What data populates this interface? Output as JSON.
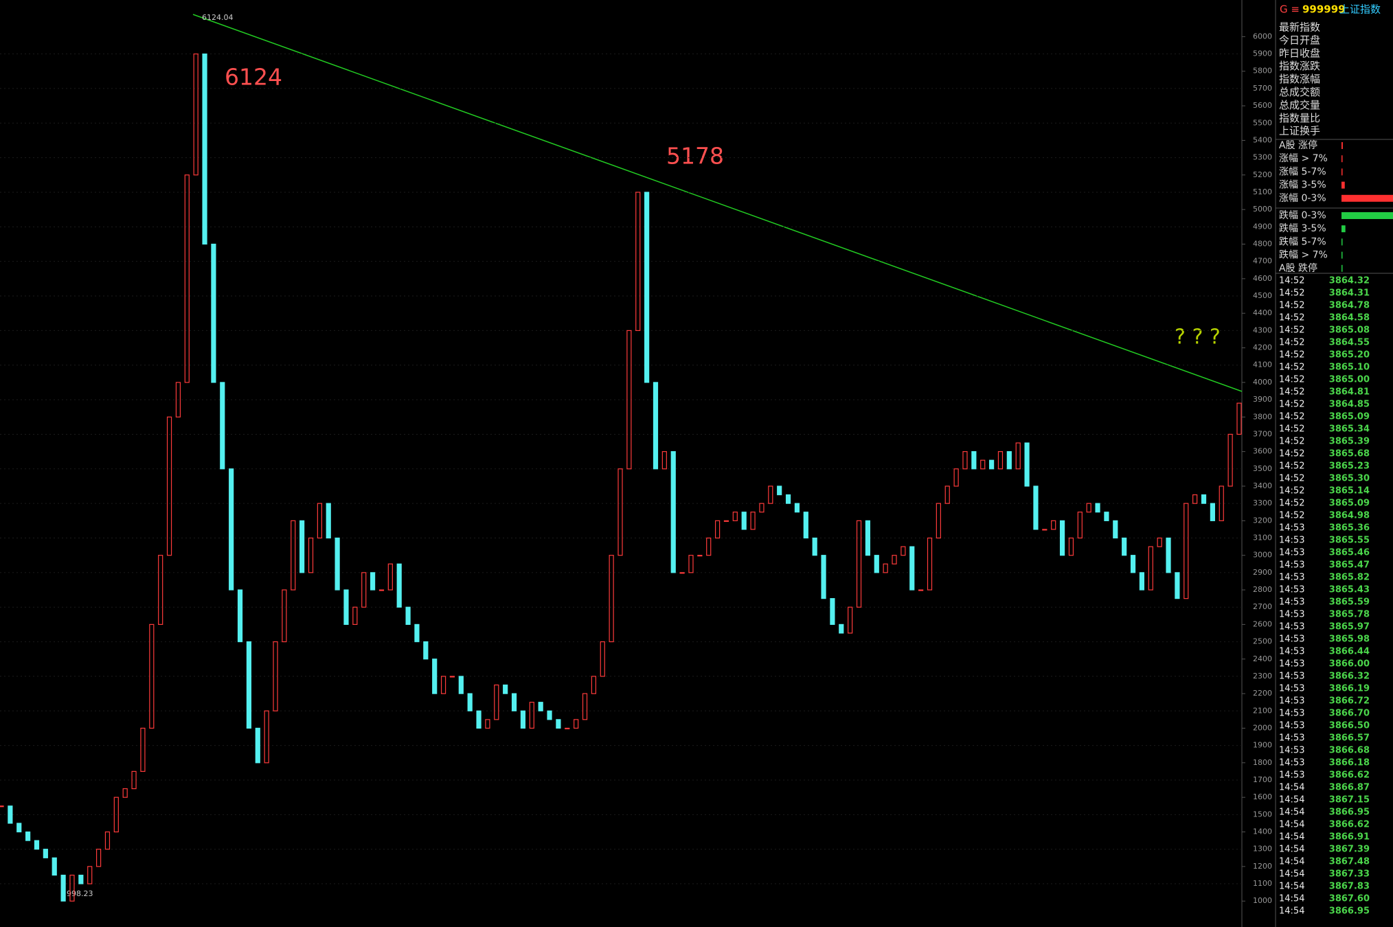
{
  "chart_data": {
    "type": "candle",
    "values": [
      1550,
      1450,
      1400,
      1350,
      1300,
      1250,
      1150,
      1000,
      1150,
      1100,
      1200,
      1300,
      1400,
      1600,
      1650,
      1750,
      2000,
      2600,
      3000,
      3800,
      4000,
      5200,
      5900,
      4800,
      4000,
      3500,
      2800,
      2500,
      2000,
      1800,
      2100,
      2500,
      2800,
      3200,
      2900,
      3100,
      3300,
      3100,
      2800,
      2600,
      2700,
      2900,
      2800,
      2800,
      2950,
      2700,
      2600,
      2500,
      2400,
      2200,
      2300,
      2300,
      2200,
      2100,
      2000,
      2050,
      2250,
      2200,
      2100,
      2000,
      2150,
      2100,
      2050,
      2000,
      2000,
      2050,
      2200,
      2300,
      2500,
      3000,
      3500,
      4300,
      5100,
      4000,
      3500,
      3600,
      2900,
      2900,
      3000,
      3000,
      3100,
      3200,
      3200,
      3250,
      3150,
      3250,
      3300,
      3400,
      3350,
      3300,
      3250,
      3100,
      3000,
      2750,
      2600,
      2550,
      2700,
      3200,
      3000,
      2900,
      2950,
      3000,
      3050,
      2800,
      2800,
      3100,
      3300,
      3400,
      3500,
      3600,
      3500,
      3550,
      3500,
      3600,
      3500,
      3650,
      3400,
      3150,
      3150,
      3200,
      3000,
      3100,
      3250,
      3300,
      3250,
      3200,
      3100,
      3000,
      2900,
      2800,
      3050,
      3100,
      2900,
      2750,
      3300,
      3350,
      3300,
      3200,
      3400,
      3700,
      3880
    ],
    "up_color": "#ff3b3b",
    "down_color": "#54f0f0",
    "ylim": [
      850,
      6212
    ],
    "yticks": [
      1000,
      1100,
      1200,
      1300,
      1400,
      1500,
      1600,
      1700,
      1800,
      1900,
      2000,
      2100,
      2200,
      2300,
      2400,
      2500,
      2600,
      2700,
      2800,
      2900,
      3000,
      3100,
      3200,
      3300,
      3400,
      3500,
      3600,
      3700,
      3800,
      3900,
      4000,
      4100,
      4200,
      4300,
      4400,
      4500,
      4600,
      4700,
      4800,
      4900,
      5000,
      5100,
      5200,
      5300,
      5400,
      5500,
      5600,
      5700,
      5800,
      5900,
      6000
    ],
    "grid": true,
    "annotations": {
      "peak_label": "6124.04",
      "low_label": "998.23",
      "peak1": "6124",
      "peak2": "5178",
      "question": "? ? ?"
    }
  },
  "panel": {
    "header": {
      "code": "999999",
      "name": "上证指数",
      "prefix": "G ≡"
    },
    "fields": [
      "最新指数",
      "今日开盘",
      "昨日收盘",
      "指数涨跌",
      "指数涨幅",
      "总成交额",
      "总成交量",
      "指数量比",
      "上证换手"
    ],
    "breadth": [
      {
        "label": "A股 涨停",
        "value": 20,
        "dir": "up"
      },
      {
        "label": "涨幅 > 7%",
        "value": 15,
        "dir": "up"
      },
      {
        "label": "涨幅 5-7%",
        "value": 15,
        "dir": "up"
      },
      {
        "label": "涨幅 3-5%",
        "value": 50,
        "dir": "up"
      },
      {
        "label": "涨幅 0-3%",
        "value": 800,
        "dir": "up"
      },
      {
        "label": "跌幅 0-3%",
        "value": 800,
        "dir": "down"
      },
      {
        "label": "跌幅 3-5%",
        "value": 60,
        "dir": "down"
      },
      {
        "label": "跌幅 5-7%",
        "value": 15,
        "dir": "down"
      },
      {
        "label": "跌幅 > 7%",
        "value": 5,
        "dir": "down"
      },
      {
        "label": "A股 跌停",
        "value": 5,
        "dir": "down"
      }
    ],
    "ticks": [
      [
        "14:52",
        "3864.32"
      ],
      [
        "14:52",
        "3864.31"
      ],
      [
        "14:52",
        "3864.78"
      ],
      [
        "14:52",
        "3864.58"
      ],
      [
        "14:52",
        "3865.08"
      ],
      [
        "14:52",
        "3864.55"
      ],
      [
        "14:52",
        "3865.20"
      ],
      [
        "14:52",
        "3865.10"
      ],
      [
        "14:52",
        "3865.00"
      ],
      [
        "14:52",
        "3864.81"
      ],
      [
        "14:52",
        "3864.85"
      ],
      [
        "14:52",
        "3865.09"
      ],
      [
        "14:52",
        "3865.34"
      ],
      [
        "14:52",
        "3865.39"
      ],
      [
        "14:52",
        "3865.68"
      ],
      [
        "14:52",
        "3865.23"
      ],
      [
        "14:52",
        "3865.30"
      ],
      [
        "14:52",
        "3865.14"
      ],
      [
        "14:52",
        "3865.09"
      ],
      [
        "14:52",
        "3864.98"
      ],
      [
        "14:53",
        "3865.36"
      ],
      [
        "14:53",
        "3865.55"
      ],
      [
        "14:53",
        "3865.46"
      ],
      [
        "14:53",
        "3865.47"
      ],
      [
        "14:53",
        "3865.82"
      ],
      [
        "14:53",
        "3865.43"
      ],
      [
        "14:53",
        "3865.59"
      ],
      [
        "14:53",
        "3865.78"
      ],
      [
        "14:53",
        "3865.97"
      ],
      [
        "14:53",
        "3865.98"
      ],
      [
        "14:53",
        "3866.44"
      ],
      [
        "14:53",
        "3866.00"
      ],
      [
        "14:53",
        "3866.32"
      ],
      [
        "14:53",
        "3866.19"
      ],
      [
        "14:53",
        "3866.72"
      ],
      [
        "14:53",
        "3866.70"
      ],
      [
        "14:53",
        "3866.50"
      ],
      [
        "14:53",
        "3866.57"
      ],
      [
        "14:53",
        "3866.68"
      ],
      [
        "14:53",
        "3866.18"
      ],
      [
        "14:53",
        "3866.62"
      ],
      [
        "14:54",
        "3866.87"
      ],
      [
        "14:54",
        "3867.15"
      ],
      [
        "14:54",
        "3866.95"
      ],
      [
        "14:54",
        "3866.62"
      ],
      [
        "14:54",
        "3866.91"
      ],
      [
        "14:54",
        "3867.39"
      ],
      [
        "14:54",
        "3867.48"
      ],
      [
        "14:54",
        "3867.33"
      ],
      [
        "14:54",
        "3867.83"
      ],
      [
        "14:54",
        "3867.60"
      ],
      [
        "14:54",
        "3866.95"
      ]
    ]
  }
}
